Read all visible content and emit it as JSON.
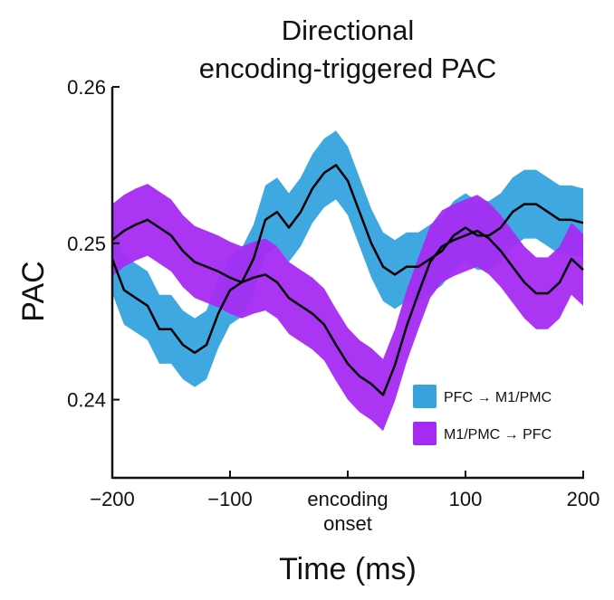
{
  "chart_data": {
    "type": "line",
    "title_lines": [
      "Directional",
      "encoding-triggered PAC"
    ],
    "xlabel": "Time (ms)",
    "ylabel": "PAC",
    "xlim": [
      -200,
      200
    ],
    "ylim": [
      0.235,
      0.26
    ],
    "x_ticks": [
      {
        "value": -200,
        "label": "−200"
      },
      {
        "value": -100,
        "label": "−100"
      },
      {
        "value": 0,
        "label": "encoding",
        "label2": "onset"
      },
      {
        "value": 100,
        "label": "100"
      },
      {
        "value": 200,
        "label": "200"
      }
    ],
    "y_ticks": [
      {
        "value": 0.24,
        "label": "0.24"
      },
      {
        "value": 0.25,
        "label": "0.25"
      },
      {
        "value": 0.26,
        "label": "0.26"
      }
    ],
    "grid": false,
    "legend_position": "lower-right",
    "series": [
      {
        "name": "PFC → M1/PMC",
        "color": "#36A3DE",
        "line_color": "#000000",
        "x": [
          -200,
          -190,
          -180,
          -170,
          -160,
          -150,
          -140,
          -130,
          -120,
          -110,
          -100,
          -90,
          -80,
          -70,
          -60,
          -50,
          -40,
          -30,
          -20,
          -10,
          0,
          10,
          20,
          30,
          40,
          50,
          60,
          70,
          80,
          90,
          100,
          110,
          120,
          130,
          140,
          150,
          160,
          170,
          180,
          190,
          200
        ],
        "mean": [
          0.249,
          0.247,
          0.2465,
          0.246,
          0.2445,
          0.2445,
          0.2435,
          0.243,
          0.2435,
          0.2455,
          0.247,
          0.2475,
          0.249,
          0.2515,
          0.252,
          0.251,
          0.252,
          0.2535,
          0.2545,
          0.255,
          0.254,
          0.252,
          0.25,
          0.2485,
          0.248,
          0.2485,
          0.2485,
          0.249,
          0.2495,
          0.2505,
          0.251,
          0.2505,
          0.2505,
          0.251,
          0.252,
          0.2525,
          0.2525,
          0.252,
          0.2515,
          0.2515,
          0.2513
        ],
        "half_width": 0.0022
      },
      {
        "name": "M1/PMC → PFC",
        "color": "#A52BF2",
        "line_color": "#000000",
        "x": [
          -200,
          -190,
          -180,
          -170,
          -160,
          -150,
          -140,
          -130,
          -120,
          -110,
          -100,
          -90,
          -80,
          -70,
          -60,
          -50,
          -40,
          -30,
          -20,
          -10,
          0,
          10,
          20,
          30,
          40,
          50,
          60,
          70,
          80,
          90,
          100,
          110,
          120,
          130,
          140,
          150,
          160,
          170,
          180,
          190,
          200
        ],
        "mean": [
          0.2502,
          0.2508,
          0.2512,
          0.2515,
          0.251,
          0.2505,
          0.2495,
          0.2488,
          0.2485,
          0.2482,
          0.2478,
          0.2475,
          0.2478,
          0.248,
          0.2475,
          0.2465,
          0.246,
          0.2455,
          0.2448,
          0.2435,
          0.2423,
          0.2415,
          0.241,
          0.2403,
          0.2422,
          0.2447,
          0.2468,
          0.2488,
          0.2498,
          0.2502,
          0.2505,
          0.2508,
          0.2503,
          0.2495,
          0.2485,
          0.2475,
          0.2468,
          0.2468,
          0.2475,
          0.249,
          0.2483
        ],
        "half_width": 0.0023
      }
    ]
  }
}
